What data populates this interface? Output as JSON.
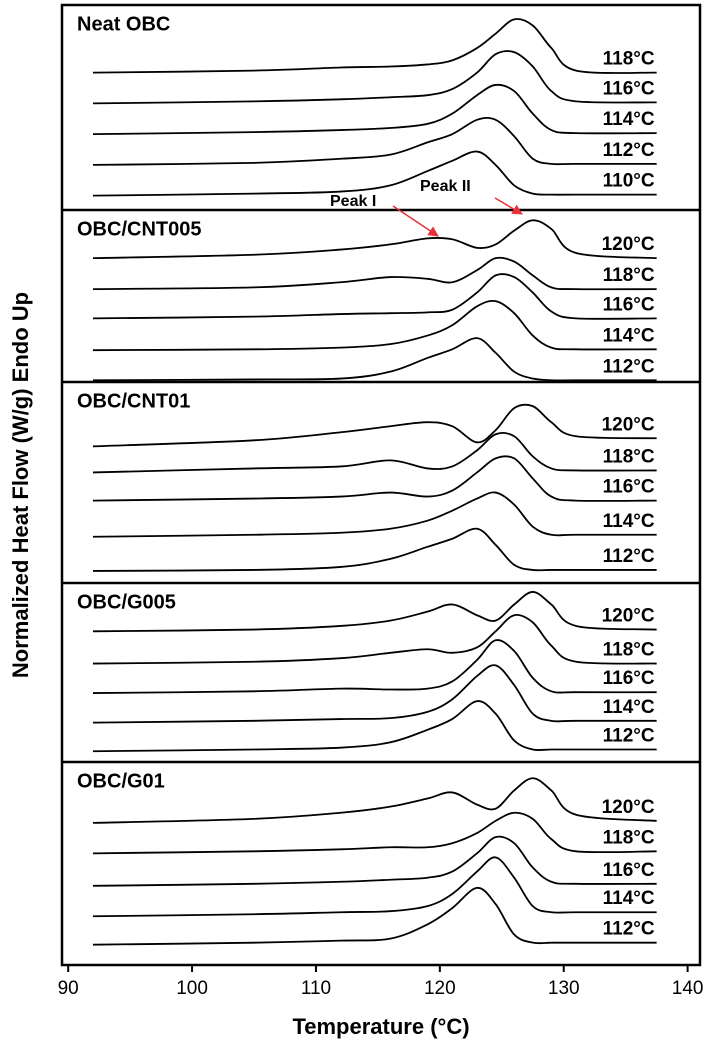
{
  "chart_data": [
    {
      "type": "line",
      "title": "Neat OBC",
      "x": [
        92,
        105,
        112,
        116,
        119,
        121,
        123,
        124.5,
        126,
        127.5,
        129,
        131,
        137.5
      ],
      "xlim": [
        89.5,
        141
      ],
      "ylim": [
        0,
        100
      ],
      "series": [
        {
          "name": "118°C",
          "color": "#000000",
          "values": [
            67,
            68,
            69.5,
            70,
            71,
            73,
            79,
            86,
            93,
            90,
            79,
            68,
            67
          ]
        },
        {
          "name": "116°C",
          "color": "#000000",
          "values": [
            52,
            53,
            54,
            55,
            56,
            59,
            67,
            76,
            77,
            70,
            58,
            53,
            52.5
          ]
        },
        {
          "name": "114°C",
          "color": "#000000",
          "values": [
            37,
            38,
            39,
            40,
            42,
            47,
            56,
            61,
            58,
            47,
            39,
            37.5,
            37.5
          ]
        },
        {
          "name": "112°C",
          "color": "#000000",
          "values": [
            22,
            23,
            25,
            27,
            33,
            37,
            44,
            44,
            36,
            25,
            22.5,
            22.5,
            22.5
          ]
        },
        {
          "name": "110°C",
          "color": "#000000",
          "values": [
            7,
            8,
            9,
            12,
            19,
            24,
            28.5,
            22,
            12,
            8,
            7.5,
            7.5,
            7.5
          ]
        }
      ]
    },
    {
      "type": "line",
      "title": "OBC/CNT005",
      "annotations": [
        "Peak I",
        "Peak II"
      ],
      "x": [
        92,
        105,
        112,
        116,
        119,
        121,
        123,
        124.5,
        126,
        127.5,
        129,
        131,
        137.5
      ],
      "xlim": [
        89.5,
        141
      ],
      "ylim": [
        0,
        100
      ],
      "series": [
        {
          "name": "120°C",
          "color": "#000000",
          "values": [
            72,
            74,
            77,
            80,
            83.5,
            83,
            78,
            80,
            88,
            94,
            89,
            75,
            72
          ]
        },
        {
          "name": "118°C",
          "color": "#000000",
          "values": [
            54,
            55,
            58,
            61,
            60,
            58,
            65,
            72,
            70,
            62,
            55,
            54,
            54
          ]
        },
        {
          "name": "116°C",
          "color": "#000000",
          "values": [
            37,
            38,
            39.5,
            40,
            40.5,
            42,
            52,
            62,
            61,
            52,
            41,
            37,
            37
          ]
        },
        {
          "name": "114°C",
          "color": "#000000",
          "values": [
            18.5,
            19,
            20,
            22,
            27,
            33,
            44,
            47,
            40,
            27,
            20,
            19,
            19
          ]
        },
        {
          "name": "112°C",
          "color": "#000000",
          "values": [
            1,
            1.5,
            2,
            6,
            14,
            19,
            25.5,
            17,
            6,
            2,
            1,
            1,
            1
          ]
        }
      ]
    },
    {
      "type": "line",
      "title": "OBC/CNT01",
      "x": [
        92,
        105,
        112,
        116,
        119,
        121,
        123,
        124.5,
        126,
        127.5,
        129,
        131,
        137.5
      ],
      "xlim": [
        89.5,
        141
      ],
      "ylim": [
        0,
        100
      ],
      "series": [
        {
          "name": "120°C",
          "color": "#000000",
          "values": [
            68,
            71,
            75,
            78,
            80,
            78,
            70,
            76,
            87,
            88,
            80,
            73,
            72
          ]
        },
        {
          "name": "118°C",
          "color": "#000000",
          "values": [
            55,
            57,
            58,
            61,
            57,
            58,
            66,
            74,
            73,
            63,
            57,
            56,
            56
          ]
        },
        {
          "name": "116°C",
          "color": "#000000",
          "values": [
            41,
            42,
            43,
            45,
            43,
            46,
            55,
            62,
            62,
            52,
            43,
            41,
            41
          ]
        },
        {
          "name": "114°C",
          "color": "#000000",
          "values": [
            23,
            24,
            25,
            27,
            31,
            36,
            42,
            45,
            39,
            28,
            24,
            24,
            24
          ]
        },
        {
          "name": "112°C",
          "color": "#000000",
          "values": [
            6,
            6.5,
            8,
            12,
            18,
            22,
            27,
            19,
            9,
            6.5,
            6.5,
            6.5,
            6.5
          ]
        }
      ]
    },
    {
      "type": "line",
      "title": "OBC/G005",
      "x": [
        92,
        105,
        112,
        116,
        119,
        121,
        123,
        124.5,
        126,
        127.5,
        129,
        131,
        137.5
      ],
      "xlim": [
        89.5,
        141
      ],
      "ylim": [
        0,
        100
      ],
      "series": [
        {
          "name": "120°C",
          "color": "#000000",
          "values": [
            73,
            74,
            76,
            79,
            84,
            88,
            82,
            79,
            88,
            95,
            88,
            76,
            74
          ]
        },
        {
          "name": "118°C",
          "color": "#000000",
          "values": [
            55,
            56,
            58,
            61,
            63,
            61,
            64,
            73,
            82,
            78,
            65,
            56,
            55
          ]
        },
        {
          "name": "116°C",
          "color": "#000000",
          "values": [
            38.5,
            39.5,
            41,
            40.5,
            41,
            45,
            57,
            68,
            62,
            47,
            39.5,
            39,
            39
          ]
        },
        {
          "name": "114°C",
          "color": "#000000",
          "values": [
            22,
            23,
            24,
            24.5,
            28,
            35,
            48,
            54,
            43,
            27,
            23,
            23,
            23
          ]
        },
        {
          "name": "112°C",
          "color": "#000000",
          "values": [
            6,
            7,
            8,
            11,
            18,
            24,
            34,
            27,
            12,
            7,
            7,
            7,
            7
          ]
        }
      ]
    },
    {
      "type": "line",
      "title": "OBC/G01",
      "x": [
        92,
        105,
        112,
        116,
        119,
        121,
        123,
        124.5,
        126,
        127.5,
        129,
        131,
        137.5
      ],
      "xlim": [
        89.5,
        141
      ],
      "ylim": [
        0,
        100
      ],
      "xlabel": "Temperature (°C)",
      "ylabel": "Normalized Heat Flow (W/g) Endo Up",
      "xticks": [
        90,
        100,
        110,
        120,
        130,
        140
      ],
      "series": [
        {
          "name": "120°C",
          "color": "#000000",
          "values": [
            70,
            72,
            75,
            78,
            82,
            85,
            79,
            77,
            86,
            92,
            86,
            74,
            71
          ]
        },
        {
          "name": "118°C",
          "color": "#000000",
          "values": [
            55,
            56,
            57,
            58,
            58,
            60,
            65,
            71,
            75,
            72,
            62,
            56,
            56
          ]
        },
        {
          "name": "116°C",
          "color": "#000000",
          "values": [
            39,
            40,
            41,
            42,
            43,
            46,
            55,
            63,
            60,
            48,
            41,
            40,
            40
          ]
        },
        {
          "name": "114°C",
          "color": "#000000",
          "values": [
            24,
            25,
            26,
            26.5,
            29,
            35,
            46,
            53,
            43,
            29,
            26,
            26,
            26
          ]
        },
        {
          "name": "112°C",
          "color": "#000000",
          "values": [
            10,
            11,
            12,
            13,
            20,
            28,
            38,
            30,
            15,
            11,
            11,
            11,
            11
          ]
        }
      ]
    }
  ]
}
